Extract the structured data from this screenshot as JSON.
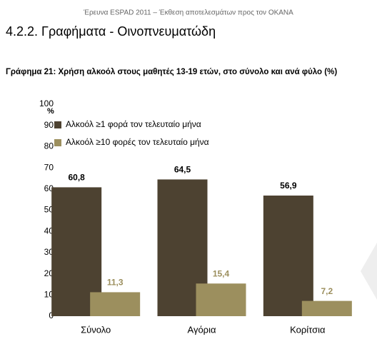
{
  "header": {
    "running_title": "Έρευνα ESPAD 2011 – Έκθεση αποτελεσμάτων προς τον ΟΚΑΝΑ",
    "section_title": "4.2.2. Γραφήματα - Οινοπνευματώδη"
  },
  "chart_data": {
    "type": "bar",
    "title": "Γράφημα 21: Χρήση αλκοόλ στους μαθητές 13-19 ετών, στο σύνολο και ανά φύλο (%)",
    "y_unit_label": "%",
    "categories": [
      "Σύνολο",
      "Αγόρια",
      "Κορίτσια"
    ],
    "series": [
      {
        "name": "Αλκοόλ ≥1 φορά τον τελευταίο μήνα",
        "color": "#4d4231",
        "values": [
          60.8,
          64.5,
          56.9
        ],
        "value_labels": [
          "60,8",
          "64,5",
          "56,9"
        ]
      },
      {
        "name": "Αλκοόλ ≥10 φορές τον τελευταίο μήνα",
        "color": "#9c8f5e",
        "values": [
          11.3,
          15.4,
          7.2
        ],
        "value_labels": [
          "11,3",
          "15,4",
          "7,2"
        ]
      }
    ],
    "ylim": [
      0,
      100
    ],
    "yticks": [
      0,
      10,
      20,
      30,
      40,
      50,
      60,
      70,
      80,
      90,
      100
    ],
    "grid": false
  }
}
